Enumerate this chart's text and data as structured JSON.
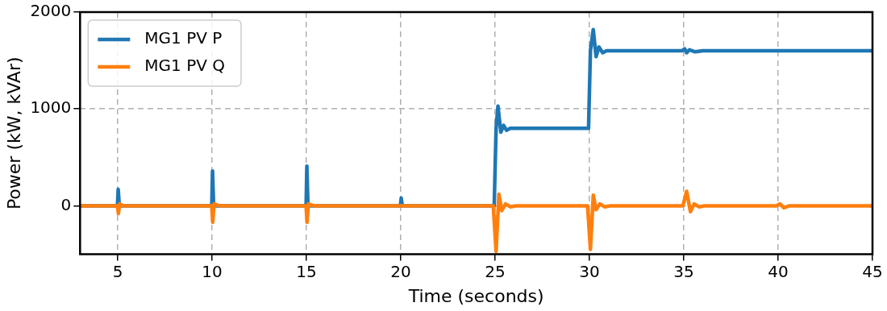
{
  "chart_data": {
    "type": "line",
    "xlabel": "Time (seconds)",
    "ylabel": "Power (kW, kVAr)",
    "xlim": [
      3,
      45
    ],
    "ylim": [
      -500,
      2000
    ],
    "xticks": [
      5,
      10,
      15,
      20,
      25,
      30,
      35,
      40,
      45
    ],
    "yticks": [
      0,
      1000,
      2000
    ],
    "grid": true,
    "legend": "top left",
    "marker": "none",
    "line_style": "solid",
    "series": [
      {
        "name": "MG1 PV P",
        "color": "#1f77b4",
        "x": [
          3,
          4.98,
          5.02,
          5.08,
          5.15,
          9.98,
          10.02,
          10.08,
          10.2,
          14.98,
          15.02,
          15.08,
          15.2,
          19.98,
          20.02,
          20.08,
          24.95,
          25.05,
          25.15,
          25.3,
          25.45,
          25.6,
          25.8,
          26,
          29.95,
          30.05,
          30.2,
          30.35,
          30.5,
          30.7,
          30.9,
          34.9,
          35.05,
          35.15,
          35.3,
          35.6,
          36,
          45
        ],
        "values": [
          0,
          0,
          170,
          0,
          0,
          0,
          360,
          0,
          0,
          0,
          410,
          0,
          0,
          0,
          80,
          0,
          0,
          800,
          1030,
          760,
          830,
          780,
          800,
          800,
          800,
          1600,
          1820,
          1540,
          1640,
          1580,
          1600,
          1600,
          1620,
          1580,
          1610,
          1590,
          1600,
          1600
        ]
      },
      {
        "name": "MG1 PV Q",
        "color": "#ff7f0e",
        "x": [
          3,
          4.98,
          5.03,
          5.1,
          5.3,
          9.98,
          10.03,
          10.1,
          10.4,
          14.98,
          15.03,
          15.1,
          15.4,
          24.9,
          25.05,
          25.2,
          25.35,
          25.55,
          25.8,
          26.1,
          29.9,
          30.05,
          30.2,
          30.35,
          30.55,
          30.8,
          31.1,
          34.95,
          35.15,
          35.35,
          35.55,
          35.8,
          36.1,
          39.9,
          40.1,
          40.3,
          40.6,
          45
        ],
        "values": [
          0,
          0,
          -80,
          20,
          0,
          0,
          -170,
          20,
          0,
          0,
          -170,
          20,
          0,
          0,
          -470,
          120,
          -50,
          20,
          -10,
          0,
          0,
          -450,
          110,
          -40,
          20,
          -10,
          0,
          0,
          150,
          -60,
          20,
          -10,
          0,
          0,
          20,
          -20,
          0,
          0
        ]
      }
    ]
  }
}
